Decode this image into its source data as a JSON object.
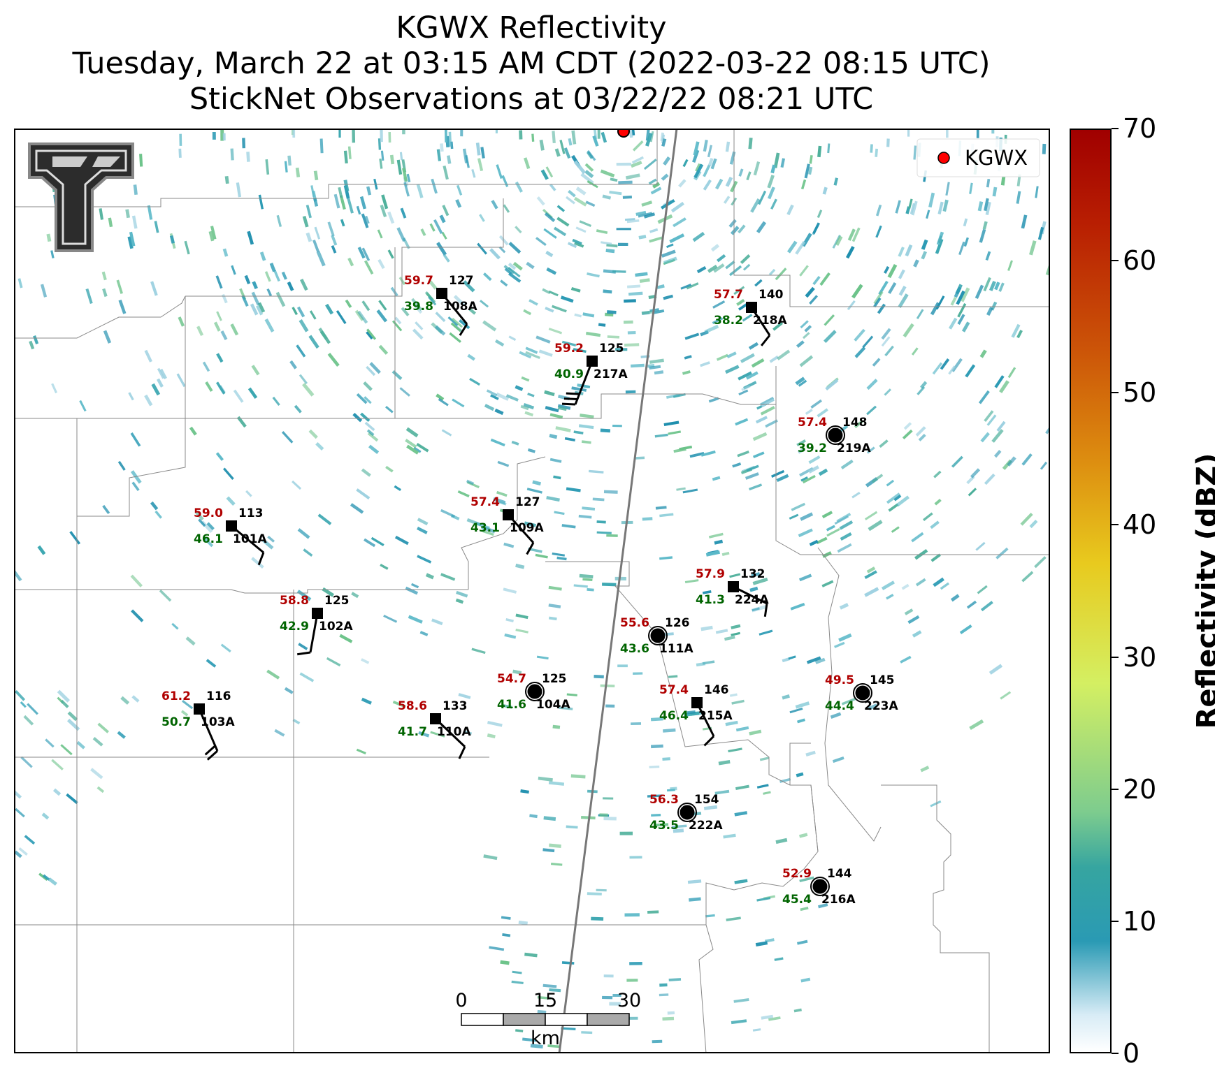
{
  "title": {
    "line1": "KGWX Reflectivity",
    "line2": "Tuesday, March 22 at 03:15 AM CDT (2022-03-22 08:15 UTC)",
    "line3": "StickNet Observations at 03/22/22 08:21 UTC"
  },
  "legend": {
    "label": "KGWX",
    "marker_color": "#ff0000"
  },
  "colorbar": {
    "label": "Reflectivity (dBZ)",
    "ticks": [
      "0",
      "10",
      "20",
      "30",
      "40",
      "50",
      "60",
      "70"
    ],
    "range": [
      0,
      70
    ],
    "colors": [
      "#ffffff",
      "#2a9ab4",
      "#7dcc8e",
      "#d4ef62",
      "#e8ca1e",
      "#dd8e10",
      "#cc5508",
      "#a00000"
    ]
  },
  "scalebar": {
    "ticks": [
      "0",
      "15",
      "30"
    ],
    "unit": "km"
  },
  "station_colors": {
    "temperature": "#b00000",
    "dewpoint": "#006400",
    "id": "#000000"
  },
  "stations": [
    {
      "id": "108A",
      "temp": "59.7",
      "dew": "39.8",
      "dir": "127",
      "marker": "square"
    },
    {
      "id": "217A",
      "temp": "59.2",
      "dew": "40.9",
      "dir": "125",
      "marker": "square"
    },
    {
      "id": "218A",
      "temp": "57.7",
      "dew": "38.2",
      "dir": "140",
      "marker": "square"
    },
    {
      "id": "219A",
      "temp": "57.4",
      "dew": "39.2",
      "dir": "148",
      "marker": "circle"
    },
    {
      "id": "101A",
      "temp": "59.0",
      "dew": "46.1",
      "dir": "113",
      "marker": "square"
    },
    {
      "id": "109A",
      "temp": "57.4",
      "dew": "43.1",
      "dir": "127",
      "marker": "square"
    },
    {
      "id": "224A",
      "temp": "57.9",
      "dew": "41.3",
      "dir": "132",
      "marker": "square"
    },
    {
      "id": "102A",
      "temp": "58.8",
      "dew": "42.9",
      "dir": "125",
      "marker": "square"
    },
    {
      "id": "111A",
      "temp": "55.6",
      "dew": "43.6",
      "dir": "126",
      "marker": "circle"
    },
    {
      "id": "103A",
      "temp": "61.2",
      "dew": "50.7",
      "dir": "116",
      "marker": "square"
    },
    {
      "id": "104A",
      "temp": "54.7",
      "dew": "41.6",
      "dir": "125",
      "marker": "circle"
    },
    {
      "id": "110A",
      "temp": "58.6",
      "dew": "41.7",
      "dir": "133",
      "marker": "square"
    },
    {
      "id": "215A",
      "temp": "57.4",
      "dew": "46.4",
      "dir": "146",
      "marker": "square"
    },
    {
      "id": "223A",
      "temp": "49.5",
      "dew": "44.4",
      "dir": "145",
      "marker": "circle"
    },
    {
      "id": "222A",
      "temp": "56.3",
      "dew": "43.5",
      "dir": "154",
      "marker": "circle"
    },
    {
      "id": "216A",
      "temp": "52.9",
      "dew": "45.4",
      "dir": "144",
      "marker": "circle"
    }
  ]
}
